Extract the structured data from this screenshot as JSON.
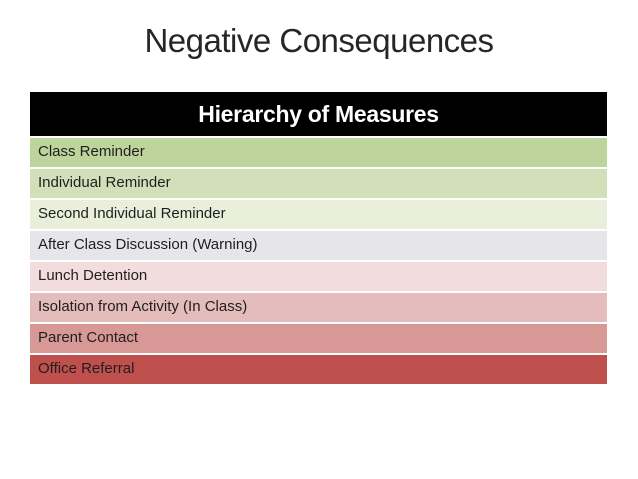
{
  "slide": {
    "title": "Negative Consequences",
    "background_color": "#ffffff",
    "title_color": "#262626"
  },
  "table": {
    "header": "Hierarchy of Measures",
    "header_bg": "#000000",
    "header_text_color": "#ffffff",
    "row_text_color": "#1f1f1f",
    "rows": [
      {
        "label": "Class Reminder",
        "color": "#bdd49c"
      },
      {
        "label": "Individual Reminder",
        "color": "#d2e0ba"
      },
      {
        "label": "Second Individual Reminder",
        "color": "#e9efdb"
      },
      {
        "label": "After Class Discussion (Warning)",
        "color": "#e6e5ea"
      },
      {
        "label": "Lunch Detention",
        "color": "#f2dcdc"
      },
      {
        "label": "Isolation from Activity (In Class)",
        "color": "#e3bcbb"
      },
      {
        "label": "Parent Contact",
        "color": "#d79896"
      },
      {
        "label": "Office Referral",
        "color": "#c0504d"
      }
    ]
  }
}
